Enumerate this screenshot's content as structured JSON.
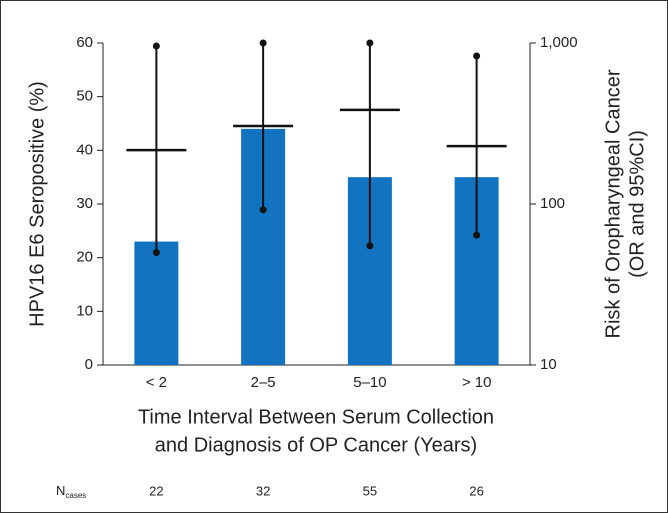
{
  "chart_data": {
    "type": "bar",
    "categories": [
      "< 2",
      "2–5",
      "5–10",
      "> 10"
    ],
    "values": [
      23,
      44,
      35,
      35
    ],
    "color": "#1273c0",
    "ylim": [
      0,
      60
    ],
    "yticks": [
      0,
      10,
      20,
      30,
      40,
      50,
      60
    ],
    "y2lim": [
      10,
      1000
    ],
    "y2_log": true,
    "y2ticks": [
      {
        "value": 1000,
        "label": "1,000"
      },
      100,
      10
    ],
    "error_bars": {
      "axis": "y2",
      "color": "#111111",
      "values": [
        216,
        305,
        384,
        229
      ],
      "lower": [
        50,
        92,
        55,
        64
      ],
      "upper": [
        958,
        1000,
        1000,
        830
      ]
    },
    "ylabel": "HPV16 E6 Seropositive (%)",
    "y2label": [
      "Risk of Oropharyngeal Cancer",
      "(OR and 95%CI)"
    ],
    "xlabel": [
      "Time Interval Between Serum Collection",
      "and Diagnosis of OP Cancer (Years)"
    ],
    "n_cases": {
      "label": "N",
      "label_sub": "cases",
      "values": [
        22,
        32,
        55,
        26
      ]
    }
  }
}
